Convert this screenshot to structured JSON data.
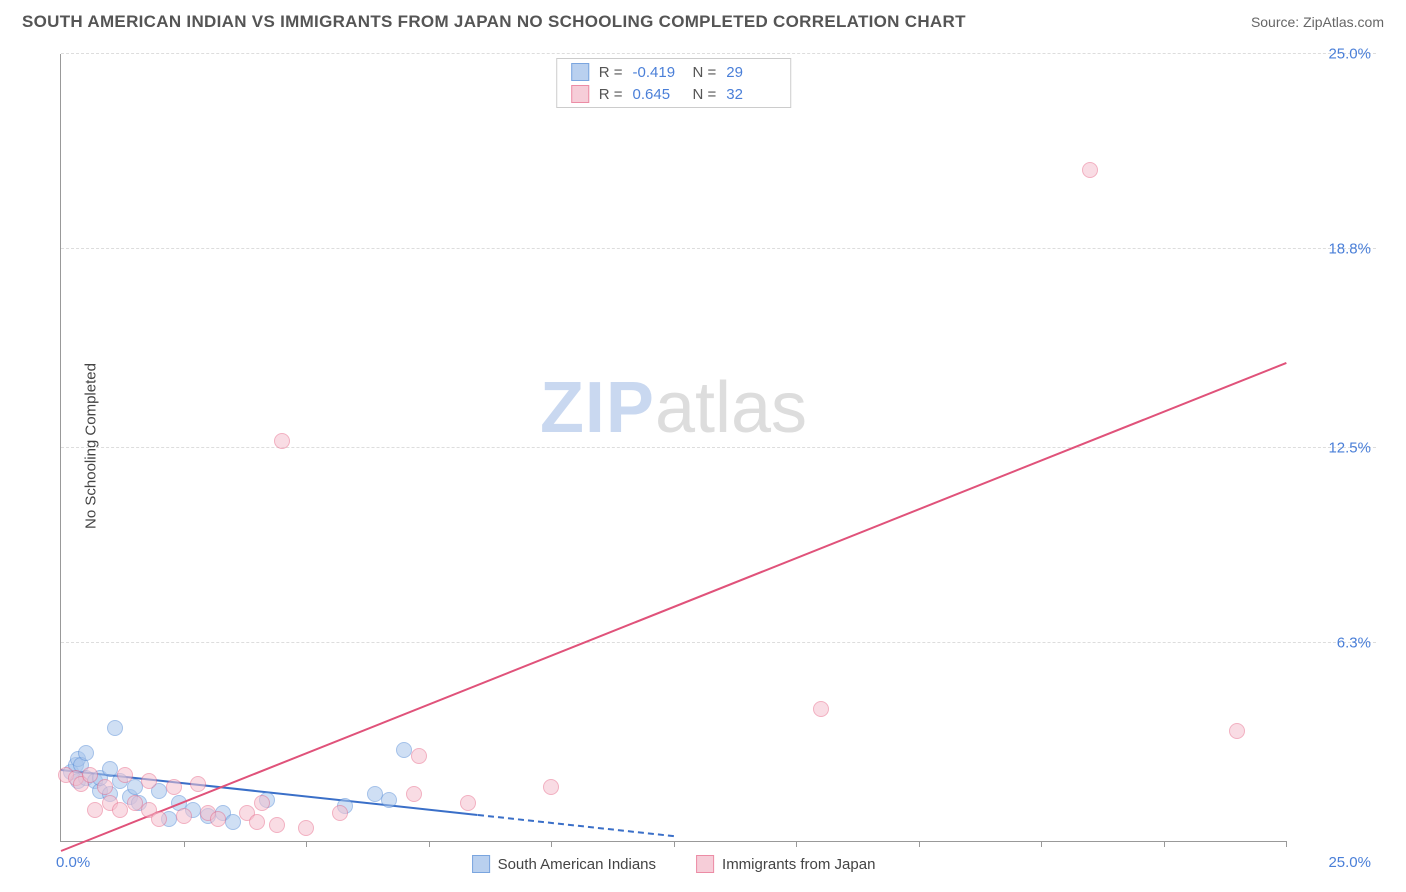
{
  "header": {
    "title": "SOUTH AMERICAN INDIAN VS IMMIGRANTS FROM JAPAN NO SCHOOLING COMPLETED CORRELATION CHART",
    "source_prefix": "Source: ",
    "source_name": "ZipAtlas.com"
  },
  "watermark": {
    "part1": "ZIP",
    "part2": "atlas"
  },
  "chart": {
    "type": "scatter",
    "y_axis_label": "No Schooling Completed",
    "background_color": "#ffffff",
    "grid_color": "#dddddd",
    "axis_color": "#999999",
    "tick_color": "#4a7fd8",
    "xlim": [
      0,
      25
    ],
    "ylim": [
      0,
      25
    ],
    "xticks": [
      {
        "pos": 0.0,
        "label": "0.0%"
      },
      {
        "pos": 25.0,
        "label": "25.0%"
      }
    ],
    "xtick_marks": [
      2.5,
      5.0,
      7.5,
      10.0,
      12.5,
      15.0,
      17.5,
      20.0,
      22.5,
      25.0
    ],
    "yticks": [
      {
        "pos": 6.3,
        "label": "6.3%"
      },
      {
        "pos": 12.5,
        "label": "12.5%"
      },
      {
        "pos": 18.8,
        "label": "18.8%"
      },
      {
        "pos": 25.0,
        "label": "25.0%"
      }
    ],
    "series": [
      {
        "name": "South American Indians",
        "fill_color": "#a8c5ec",
        "stroke_color": "#5a8fd8",
        "fill_opacity": 0.55,
        "marker_radius": 8,
        "r": "-0.419",
        "n": "29",
        "trend": {
          "x1": 0,
          "y1": 2.3,
          "x2": 12.5,
          "y2": 0.2,
          "color": "#3a6fc8",
          "width": 2,
          "dash_from_x": 8.5
        },
        "points": [
          [
            0.2,
            2.2
          ],
          [
            0.3,
            2.4
          ],
          [
            0.35,
            2.6
          ],
          [
            0.35,
            1.9
          ],
          [
            0.4,
            2.4
          ],
          [
            0.5,
            2.8
          ],
          [
            0.5,
            2.0
          ],
          [
            0.7,
            1.9
          ],
          [
            0.8,
            1.6
          ],
          [
            0.8,
            2.0
          ],
          [
            1.0,
            2.3
          ],
          [
            1.0,
            1.5
          ],
          [
            1.1,
            3.6
          ],
          [
            1.2,
            1.9
          ],
          [
            1.4,
            1.4
          ],
          [
            1.5,
            1.7
          ],
          [
            1.6,
            1.2
          ],
          [
            2.0,
            1.6
          ],
          [
            2.2,
            0.7
          ],
          [
            2.4,
            1.2
          ],
          [
            2.7,
            1.0
          ],
          [
            3.0,
            0.8
          ],
          [
            3.3,
            0.9
          ],
          [
            3.5,
            0.6
          ],
          [
            4.2,
            1.3
          ],
          [
            5.8,
            1.1
          ],
          [
            6.4,
            1.5
          ],
          [
            6.7,
            1.3
          ],
          [
            7.0,
            2.9
          ]
        ]
      },
      {
        "name": "Immigrants from Japan",
        "fill_color": "#f5c1cf",
        "stroke_color": "#e8708f",
        "fill_opacity": 0.55,
        "marker_radius": 8,
        "r": "0.645",
        "n": "32",
        "trend": {
          "x1": 0,
          "y1": -0.3,
          "x2": 25,
          "y2": 15.2,
          "color": "#e0527a",
          "width": 2
        },
        "points": [
          [
            0.1,
            2.1
          ],
          [
            0.3,
            2.0
          ],
          [
            0.4,
            1.8
          ],
          [
            0.6,
            2.1
          ],
          [
            0.7,
            1.0
          ],
          [
            0.9,
            1.7
          ],
          [
            1.0,
            1.2
          ],
          [
            1.2,
            1.0
          ],
          [
            1.3,
            2.1
          ],
          [
            1.5,
            1.2
          ],
          [
            1.8,
            1.0
          ],
          [
            1.8,
            1.9
          ],
          [
            2.0,
            0.7
          ],
          [
            2.3,
            1.7
          ],
          [
            2.5,
            0.8
          ],
          [
            2.8,
            1.8
          ],
          [
            3.0,
            0.9
          ],
          [
            3.2,
            0.7
          ],
          [
            3.8,
            0.9
          ],
          [
            4.0,
            0.6
          ],
          [
            4.1,
            1.2
          ],
          [
            4.4,
            0.5
          ],
          [
            5.0,
            0.4
          ],
          [
            5.7,
            0.9
          ],
          [
            7.2,
            1.5
          ],
          [
            7.3,
            2.7
          ],
          [
            8.3,
            1.2
          ],
          [
            10.0,
            1.7
          ],
          [
            4.5,
            12.7
          ],
          [
            15.5,
            4.2
          ],
          [
            21.0,
            21.3
          ],
          [
            24.0,
            3.5
          ]
        ]
      }
    ]
  },
  "legend_bottom": [
    {
      "label": "South American Indians",
      "fill": "#a8c5ec",
      "stroke": "#5a8fd8"
    },
    {
      "label": "Immigrants from Japan",
      "fill": "#f5c1cf",
      "stroke": "#e8708f"
    }
  ]
}
